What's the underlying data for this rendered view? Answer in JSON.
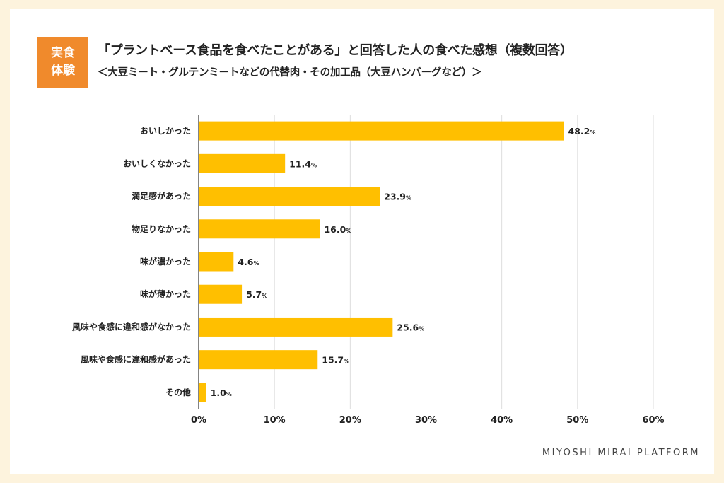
{
  "badge": {
    "line1": "実食",
    "line2": "体験"
  },
  "header": {
    "title": "「プラントベース食品を食べたことがある」と回答した人の食べた感想（複数回答）",
    "subtitle": "＜大豆ミート・グルテンミートなどの代替肉・その加工品（大豆ハンバーグなど）＞"
  },
  "footer": {
    "brand": "MIYOSHI MIRAI PLATFORM"
  },
  "colors": {
    "bar": "#ffbf00",
    "badge": "#f08a2c",
    "background": "#fdf3dd",
    "grid": "#dddddd"
  },
  "chart_data": {
    "type": "bar",
    "orientation": "horizontal",
    "categories": [
      "おいしかった",
      "おいしくなかった",
      "満足感があった",
      "物足りなかった",
      "味が濃かった",
      "味が薄かった",
      "風味や食感に違和感がなかった",
      "風味や食感に違和感があった",
      "その他"
    ],
    "values": [
      48.2,
      11.4,
      23.9,
      16.0,
      4.6,
      5.7,
      25.6,
      15.7,
      1.0
    ],
    "value_labels": [
      "48.2",
      "11.4",
      "23.9",
      "16.0",
      "4.6",
      "5.7",
      "25.6",
      "15.7",
      "1.0"
    ],
    "value_unit": "%",
    "xlim": [
      0,
      60
    ],
    "x_ticks": [
      "0%",
      "10%",
      "20%",
      "30%",
      "40%",
      "50%",
      "60%"
    ],
    "grid": true,
    "legend": false
  }
}
